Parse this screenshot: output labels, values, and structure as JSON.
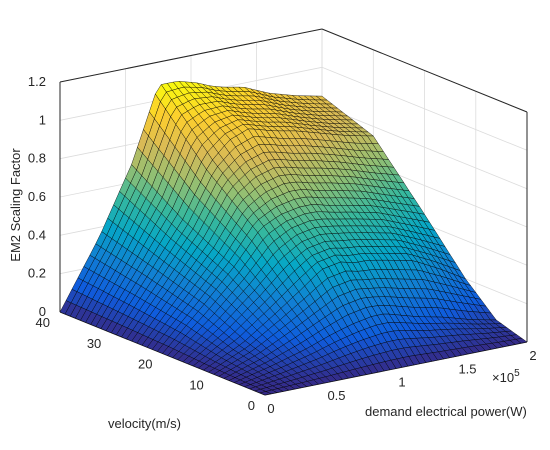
{
  "chart_data": {
    "type": "surface",
    "title": "",
    "xlabel": "demand electrical power(W)",
    "ylabel": "velocity(m/s)",
    "zlabel": "EM2 Scaling Factor",
    "x_multiplier": "×10",
    "x_exponent": "5",
    "xlim": [
      0,
      2
    ],
    "ylim": [
      0,
      40
    ],
    "zlim": [
      0,
      1.2
    ],
    "x_ticks": [
      "0",
      "0.5",
      "1",
      "1.5",
      "2"
    ],
    "y_ticks": [
      "0",
      "10",
      "20",
      "30",
      "40"
    ],
    "z_ticks": [
      "0",
      "0.2",
      "0.4",
      "0.6",
      "0.8",
      "1",
      "1.2"
    ],
    "colormap": "parula",
    "grid": true,
    "surface_rows_velocity": [
      40,
      30,
      20,
      12,
      6,
      0
    ],
    "surface_cols_power": [
      0,
      0.3,
      0.55,
      0.75,
      0.9,
      1.05,
      1.15,
      1.25,
      1.4,
      1.6,
      1.8,
      2.0
    ],
    "z_values": [
      [
        0.0,
        0.35,
        0.7,
        1.08,
        1.08,
        1.05,
        1.02,
        1.0,
        0.98,
        0.92,
        0.88,
        0.85
      ],
      [
        0.0,
        0.28,
        0.52,
        0.78,
        0.88,
        0.92,
        0.9,
        0.88,
        0.86,
        0.82,
        0.78,
        0.75
      ],
      [
        0.0,
        0.2,
        0.38,
        0.55,
        0.6,
        0.62,
        0.62,
        0.6,
        0.58,
        0.55,
        0.5,
        0.45
      ],
      [
        0.0,
        0.1,
        0.22,
        0.32,
        0.4,
        0.42,
        0.4,
        0.4,
        0.38,
        0.35,
        0.28,
        0.2
      ],
      [
        0.0,
        0.05,
        0.1,
        0.15,
        0.18,
        0.2,
        0.2,
        0.18,
        0.15,
        0.12,
        0.08,
        0.05
      ],
      [
        0.0,
        0.0,
        0.0,
        0.0,
        0.0,
        0.0,
        0.0,
        0.0,
        0.0,
        0.0,
        0.0,
        0.0
      ]
    ]
  }
}
